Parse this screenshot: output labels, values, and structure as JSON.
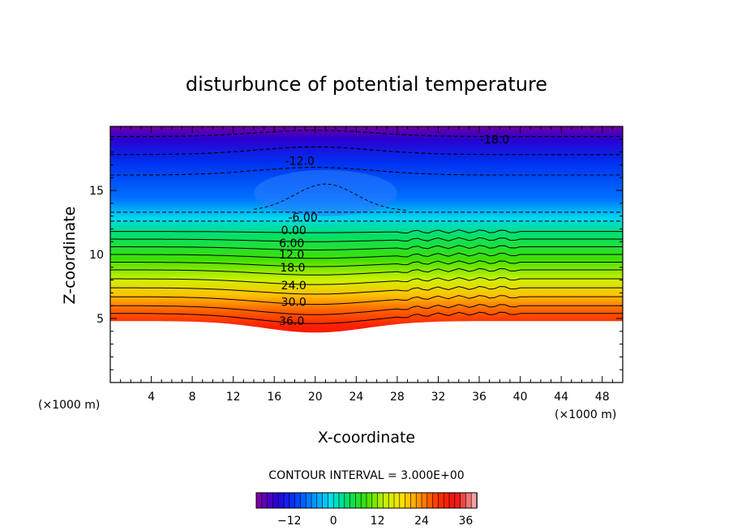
{
  "chart_data": {
    "type": "contour",
    "title": "disturbunce of potential temperature",
    "xlabel": "X-coordinate",
    "ylabel": "Z-coordinate",
    "x_unit": "(×1000 m)",
    "y_unit": "(×1000 m)",
    "xlim": [
      0,
      50
    ],
    "ylim": [
      0,
      20
    ],
    "x_ticks": [
      4,
      8,
      12,
      16,
      20,
      24,
      28,
      32,
      36,
      40,
      44,
      48
    ],
    "y_ticks": [
      5,
      10,
      15
    ],
    "contour_interval_text": "CONTOUR INTERVAL = 3.000E+00",
    "contour_labels": [
      {
        "text": "-18.0",
        "x": 37.5,
        "z": 19.0
      },
      {
        "text": "-12.0",
        "x": 18.5,
        "z": 17.3
      },
      {
        "text": "-6.00",
        "x": 18.8,
        "z": 12.9
      },
      {
        "text": "0.00",
        "x": 17.9,
        "z": 11.9
      },
      {
        "text": "6.00",
        "x": 17.7,
        "z": 10.9
      },
      {
        "text": "12.0",
        "x": 17.7,
        "z": 10.0
      },
      {
        "text": "18.0",
        "x": 17.8,
        "z": 9.0
      },
      {
        "text": "24.0",
        "x": 17.9,
        "z": 7.6
      },
      {
        "text": "30.0",
        "x": 17.9,
        "z": 6.3
      },
      {
        "text": "36.0",
        "x": 17.7,
        "z": 4.8
      }
    ],
    "colorbar": {
      "min": -21,
      "max": 39,
      "tick_values": [
        -12,
        0,
        12,
        24,
        36
      ],
      "tick_labels": [
        "−12",
        "0",
        "12",
        "24",
        "36"
      ]
    },
    "palette": [
      "#7a00a8",
      "#2a00d8",
      "#0038ff",
      "#0090ff",
      "#00e0f0",
      "#00e060",
      "#40e000",
      "#c8f000",
      "#ffe000",
      "#ff9000",
      "#ff3000",
      "#ee1010",
      "#f4a0a0"
    ]
  }
}
